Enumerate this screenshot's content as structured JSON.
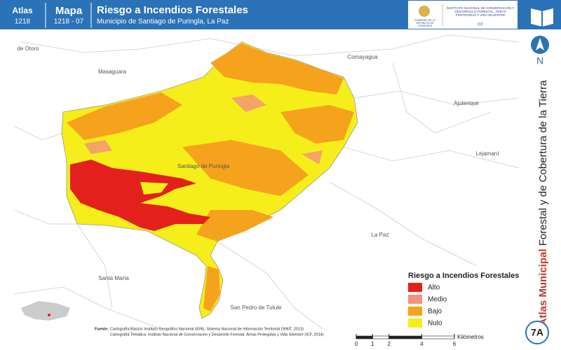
{
  "header": {
    "atlas_label": "Atlas",
    "atlas_number": "1218",
    "map_label": "Mapa",
    "map_number": "1218 - 07",
    "title": "Riesgo a Incendios Forestales",
    "subtitle": "Municipio de Santiago de Puringla, La Paz",
    "logo_left": "GOBIERNO DE LA REPÚBLICA DE HONDURAS",
    "logo_right": "INSTITUTO NACIONAL DE CONSERVACIÓN Y DESARROLLO FORESTAL, ÁREAS PROTEGIDAS Y VIDA SILVESTRE",
    "logo_right_acronym": "ICF"
  },
  "side_title": {
    "bold": "Atlas Municipal",
    "rest": "Forestal y de Cobertura de la Tierra"
  },
  "north": "N",
  "places": [
    "de Otoro",
    "Masaguara",
    "Comayagua",
    "Ajuterique",
    "Lejamaní",
    "Santiago de Puringla",
    "La Paz",
    "Santa María",
    "San Pedro de Tutule"
  ],
  "legend": {
    "title": "Riesgo a Incendios Forestales",
    "items": [
      {
        "label": "Alto",
        "color": "#e3201b"
      },
      {
        "label": "Medio",
        "color": "#f4917a"
      },
      {
        "label": "Bajo",
        "color": "#f5a31c"
      },
      {
        "label": "Nulo",
        "color": "#f5ee1a"
      }
    ]
  },
  "source": {
    "label": "Fuente:",
    "line1": "Cartografía Básica: Instituto Geográfico Nacional (IGN), Sistema Nacional de Información Territorial (SINIT, 2013)",
    "line2": "Cartografía Temática: Instituto Nacional de Conservación y Desarrollo Forestal, Áreas Protegidas y Vida Silvestre (ICF, 2014)"
  },
  "scale": {
    "ticks": [
      0,
      1,
      2,
      4,
      6
    ],
    "unit": "Kilómetros"
  },
  "page_code": "7A"
}
